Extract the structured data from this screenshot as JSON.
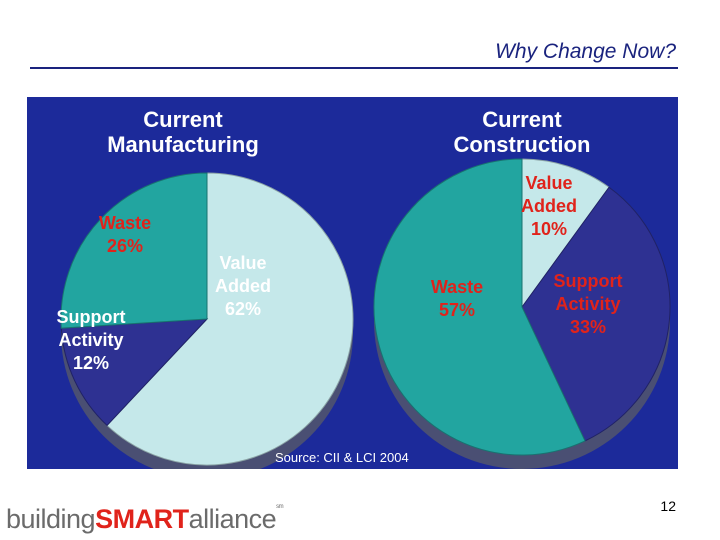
{
  "header": {
    "title": "Why Change Now?"
  },
  "chart_data": [
    {
      "type": "pie",
      "title": "Current Manufacturing",
      "labels": [
        "Value Added",
        "Support Activity",
        "Waste"
      ],
      "values": [
        62,
        12,
        26
      ],
      "value_labels": [
        "62%",
        "12%",
        "26%"
      ],
      "colors": [
        "#c5e8ea",
        "#2e3192",
        "#22a5a0"
      ]
    },
    {
      "type": "pie",
      "title": "Current Construction",
      "labels": [
        "Value Added",
        "Support Activity",
        "Waste"
      ],
      "values": [
        10,
        33,
        57
      ],
      "value_labels": [
        "10%",
        "33%",
        "57%"
      ],
      "colors": [
        "#c5e8ea",
        "#2e3192",
        "#22a5a0"
      ]
    }
  ],
  "source": "Source: CII & LCI 2004",
  "footer": {
    "page_number": "12",
    "logo_light_1": "building",
    "logo_bold": "SMART",
    "logo_light_2": "alliance",
    "logo_mark": "sm"
  },
  "colors": {
    "panel": "#1c2a9a",
    "title_text": "#1a237e",
    "label_red": "#e0231b",
    "label_white": "#ffffff"
  }
}
